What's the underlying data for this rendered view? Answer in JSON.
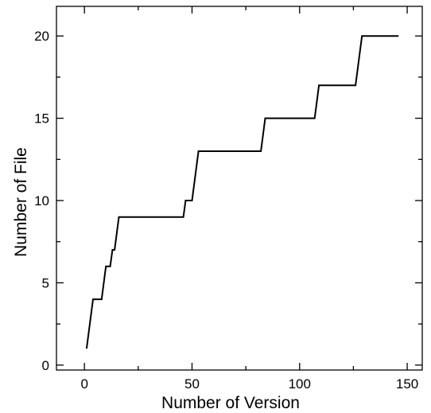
{
  "chart_data": {
    "type": "line",
    "xlabel": "Number of Version",
    "ylabel": "Number of File",
    "xlim": [
      -13,
      157
    ],
    "ylim": [
      -0.3,
      21.8
    ],
    "x_ticks": [
      0,
      50,
      100,
      150
    ],
    "y_ticks": [
      0,
      5,
      10,
      15,
      20
    ],
    "x_tick_labels": [
      "0",
      "50",
      "100",
      "150"
    ],
    "y_tick_labels": [
      "0",
      "5",
      "10",
      "15",
      "20"
    ],
    "grid": false,
    "legend": "none",
    "series": [
      {
        "color": "#000000",
        "points": [
          [
            1,
            1
          ],
          [
            4,
            4
          ],
          [
            8,
            4
          ],
          [
            10,
            6
          ],
          [
            12,
            6
          ],
          [
            13,
            7
          ],
          [
            14,
            7
          ],
          [
            16,
            9
          ],
          [
            46,
            9
          ],
          [
            47,
            10
          ],
          [
            50,
            10
          ],
          [
            53,
            13
          ],
          [
            82,
            13
          ],
          [
            84,
            15
          ],
          [
            107,
            15
          ],
          [
            109,
            17
          ],
          [
            126,
            17
          ],
          [
            129,
            20
          ],
          [
            146,
            20
          ]
        ]
      }
    ]
  }
}
